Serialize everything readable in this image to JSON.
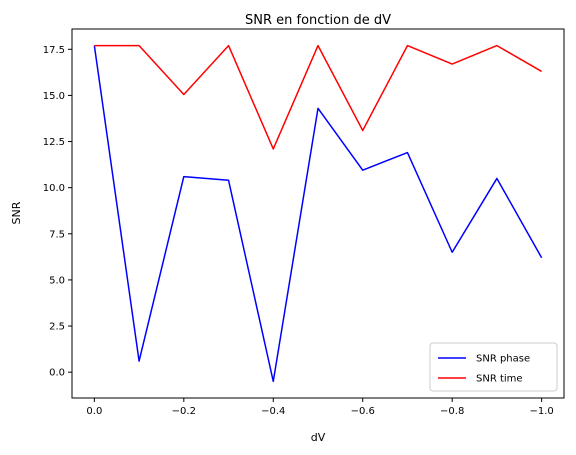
{
  "chart_data": {
    "type": "line",
    "title": "SNR en fonction de dV",
    "xlabel": "dV",
    "ylabel": "SNR",
    "x": [
      0.0,
      -0.1,
      -0.2,
      -0.3,
      -0.4,
      -0.5,
      -0.6,
      -0.7,
      -0.8,
      -0.9,
      -1.0
    ],
    "x_inverted": true,
    "xlim": [
      0.05,
      -1.05
    ],
    "ylim": [
      -1.4,
      18.6
    ],
    "xticks": [
      0.0,
      -0.2,
      -0.4,
      -0.6,
      -0.8,
      -1.0
    ],
    "xtick_labels": [
      "0.0",
      "−0.2",
      "−0.4",
      "−0.6",
      "−0.8",
      "−1.0"
    ],
    "yticks": [
      0.0,
      2.5,
      5.0,
      7.5,
      10.0,
      12.5,
      15.0,
      17.5
    ],
    "ytick_labels": [
      "0.0",
      "2.5",
      "5.0",
      "7.5",
      "10.0",
      "12.5",
      "15.0",
      "17.5"
    ],
    "grid": false,
    "legend_position": "lower-right",
    "series": [
      {
        "name": "SNR phase",
        "color": "#0000ff",
        "values": [
          17.7,
          0.6,
          10.6,
          10.4,
          -0.5,
          14.3,
          10.95,
          11.9,
          6.5,
          10.5,
          6.2
        ]
      },
      {
        "name": "SNR time",
        "color": "#ff0000",
        "values": [
          17.7,
          17.7,
          15.05,
          17.7,
          12.1,
          17.7,
          13.1,
          17.7,
          16.7,
          17.7,
          16.3
        ]
      }
    ]
  }
}
